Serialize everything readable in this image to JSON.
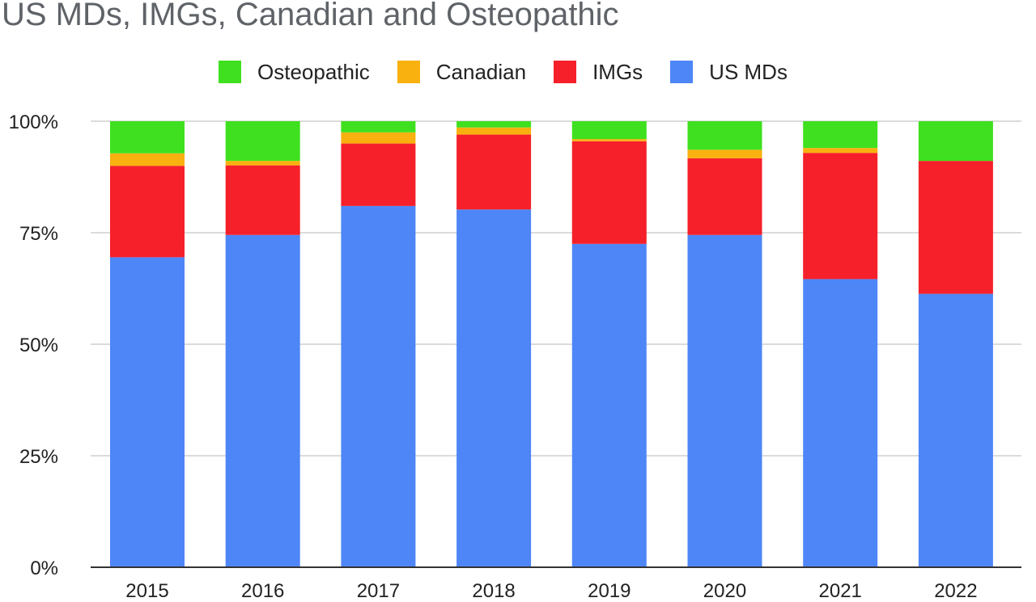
{
  "chart_data": {
    "type": "bar",
    "stacked": true,
    "title": "US MDs, IMGs, Canadian and Osteopathic",
    "categories": [
      "2015",
      "2016",
      "2017",
      "2018",
      "2019",
      "2020",
      "2021",
      "2022"
    ],
    "series": [
      {
        "name": "US MDs",
        "color": "#4e86f7",
        "values": [
          69.5,
          74.5,
          81,
          80.2,
          72.5,
          74.5,
          64.6,
          61.3
        ]
      },
      {
        "name": "IMGs",
        "color": "#f5202a",
        "values": [
          20.5,
          15.6,
          14,
          16.8,
          23,
          17.2,
          28.3,
          29.8
        ]
      },
      {
        "name": "Canadian",
        "color": "#f9b110",
        "values": [
          2.8,
          1.0,
          2.5,
          1.6,
          0.5,
          1.9,
          1.1,
          0
        ]
      },
      {
        "name": "Osteopathic",
        "color": "#3fe01f",
        "values": [
          7.2,
          8.9,
          2.5,
          1.4,
          4.0,
          6.4,
          6.0,
          8.9
        ]
      }
    ],
    "legend_order": [
      "Osteopathic",
      "Canadian",
      "IMGs",
      "US MDs"
    ],
    "legend_position": "top",
    "yticks": [
      "0%",
      "25%",
      "50%",
      "75%",
      "100%"
    ],
    "ylim": [
      0,
      100
    ],
    "grid": true
  }
}
